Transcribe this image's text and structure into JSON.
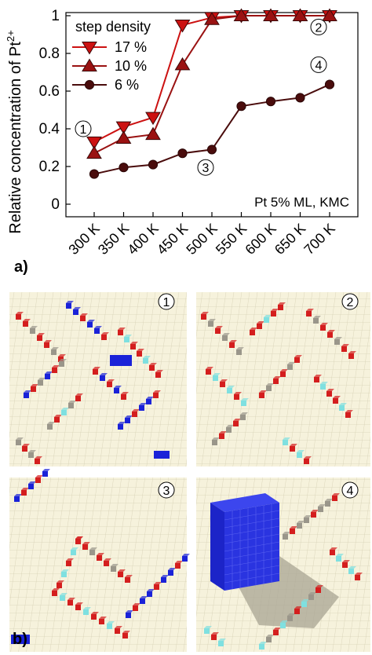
{
  "chart_data": {
    "type": "line",
    "ylabel": "Relative concentration of Pt",
    "ylabel_sup": "2+",
    "categories": [
      "300 K",
      "350 K",
      "400 K",
      "450 K",
      "500 K",
      "550 K",
      "600 K",
      "650 K",
      "700 K"
    ],
    "ylim": [
      0,
      1
    ],
    "yticks": [
      "0",
      "0.2",
      "0.4",
      "0.6",
      "0.8",
      "1"
    ],
    "grid": false,
    "legend": {
      "title": "step density",
      "placement": "top-left"
    },
    "series": [
      {
        "name": "17 %",
        "marker": "triangle-down",
        "color": "#cc1111",
        "values": [
          0.33,
          0.41,
          0.46,
          0.95,
          0.99,
          1.0,
          1.0,
          1.0,
          1.0
        ]
      },
      {
        "name": "10 %",
        "marker": "triangle-up",
        "color": "#9a1212",
        "values": [
          0.27,
          0.35,
          0.37,
          0.74,
          0.98,
          1.0,
          1.0,
          1.0,
          1.0
        ]
      },
      {
        "name": "6 %",
        "marker": "circle",
        "color": "#4a0c0c",
        "values": [
          0.16,
          0.195,
          0.21,
          0.27,
          0.29,
          0.52,
          0.545,
          0.565,
          0.635
        ]
      }
    ],
    "annotation": "Pt 5% ML, KMC",
    "callouts": [
      {
        "label": "1",
        "x": "300 K",
        "y": 0.4
      },
      {
        "label": "2",
        "x": "700 K",
        "y": 0.94
      },
      {
        "label": "3",
        "x": "500 K",
        "y": 0.195
      },
      {
        "label": "4",
        "x": "700 K",
        "y": 0.74
      }
    ]
  },
  "panels": {
    "a_label": "a)",
    "b_label": "b)",
    "snapshots": [
      {
        "label": "1",
        "name": "snapshot-300k"
      },
      {
        "label": "2",
        "name": "snapshot-700k-high-step-density"
      },
      {
        "label": "3",
        "name": "snapshot-500k-low-step-density"
      },
      {
        "label": "4",
        "name": "snapshot-700k-low-step-density"
      }
    ]
  },
  "colors": {
    "surface": "#f6f2dc",
    "grid_line": "#d6d1b4",
    "step_red": "#d41e1e",
    "step_cyan": "#7fe0e0",
    "step_gray": "#9a968a",
    "step_pink": "#f0b8c0",
    "pt_blue": "#1a22d8"
  }
}
